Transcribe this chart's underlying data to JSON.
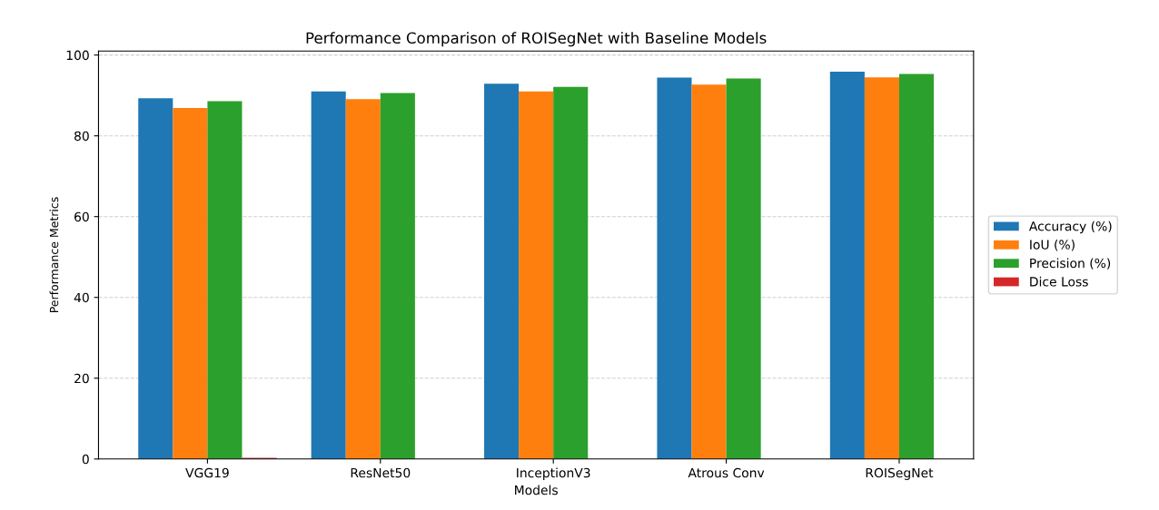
{
  "chart_data": {
    "type": "bar",
    "title": "Performance Comparison of ROISegNet with Baseline Models",
    "xlabel": "Models",
    "ylabel": "Performance Metrics",
    "categories": [
      "VGG19",
      "ResNet50",
      "InceptionV3",
      "Atrous Conv",
      "ROISegNet"
    ],
    "series": [
      {
        "name": "Accuracy (%)",
        "color": "#1f77b4",
        "values": [
          89.3,
          91.0,
          92.9,
          94.4,
          95.9
        ]
      },
      {
        "name": "IoU (%)",
        "color": "#ff7f0e",
        "values": [
          86.9,
          89.1,
          91.0,
          92.7,
          94.5
        ]
      },
      {
        "name": "Precision (%)",
        "color": "#2ca02c",
        "values": [
          88.6,
          90.6,
          92.1,
          94.2,
          95.3
        ]
      },
      {
        "name": "Dice Loss",
        "color": "#d62728",
        "values": [
          0.3,
          null,
          null,
          null,
          null
        ]
      }
    ],
    "ylim": [
      0,
      101
    ],
    "yticks": [
      0,
      20,
      40,
      60,
      80,
      100
    ],
    "grid": "y",
    "legend": "right"
  }
}
